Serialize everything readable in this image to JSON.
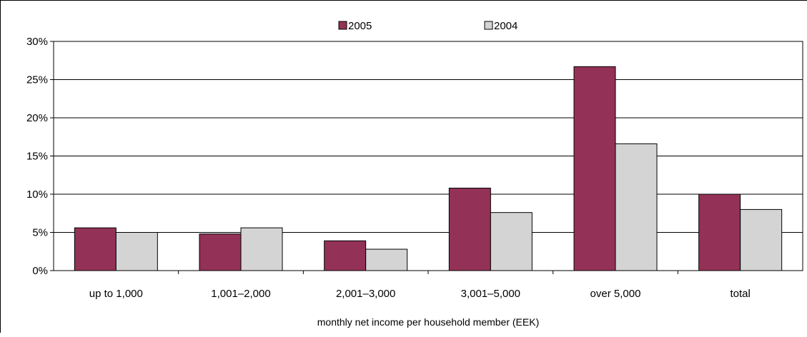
{
  "chart_data": {
    "type": "bar",
    "title": "",
    "xlabel": "monthly net income per household member (EEK)",
    "ylabel": "",
    "ylim": [
      0,
      30
    ],
    "yticks": [
      "0%",
      "5%",
      "10%",
      "15%",
      "20%",
      "25%",
      "30%"
    ],
    "categories": [
      "up to 1,000",
      "1,001–2,000",
      "2,001–3,000",
      "3,001–5,000",
      "over 5,000",
      "total"
    ],
    "series": [
      {
        "name": "2005",
        "color": "#933256",
        "values": [
          5.6,
          4.8,
          3.9,
          10.8,
          26.7,
          10.0
        ]
      },
      {
        "name": "2004",
        "color": "#d4d4d4",
        "values": [
          5.0,
          5.6,
          2.8,
          7.6,
          16.6,
          8.0
        ]
      }
    ],
    "grid": true,
    "legend_position": "top-center"
  }
}
